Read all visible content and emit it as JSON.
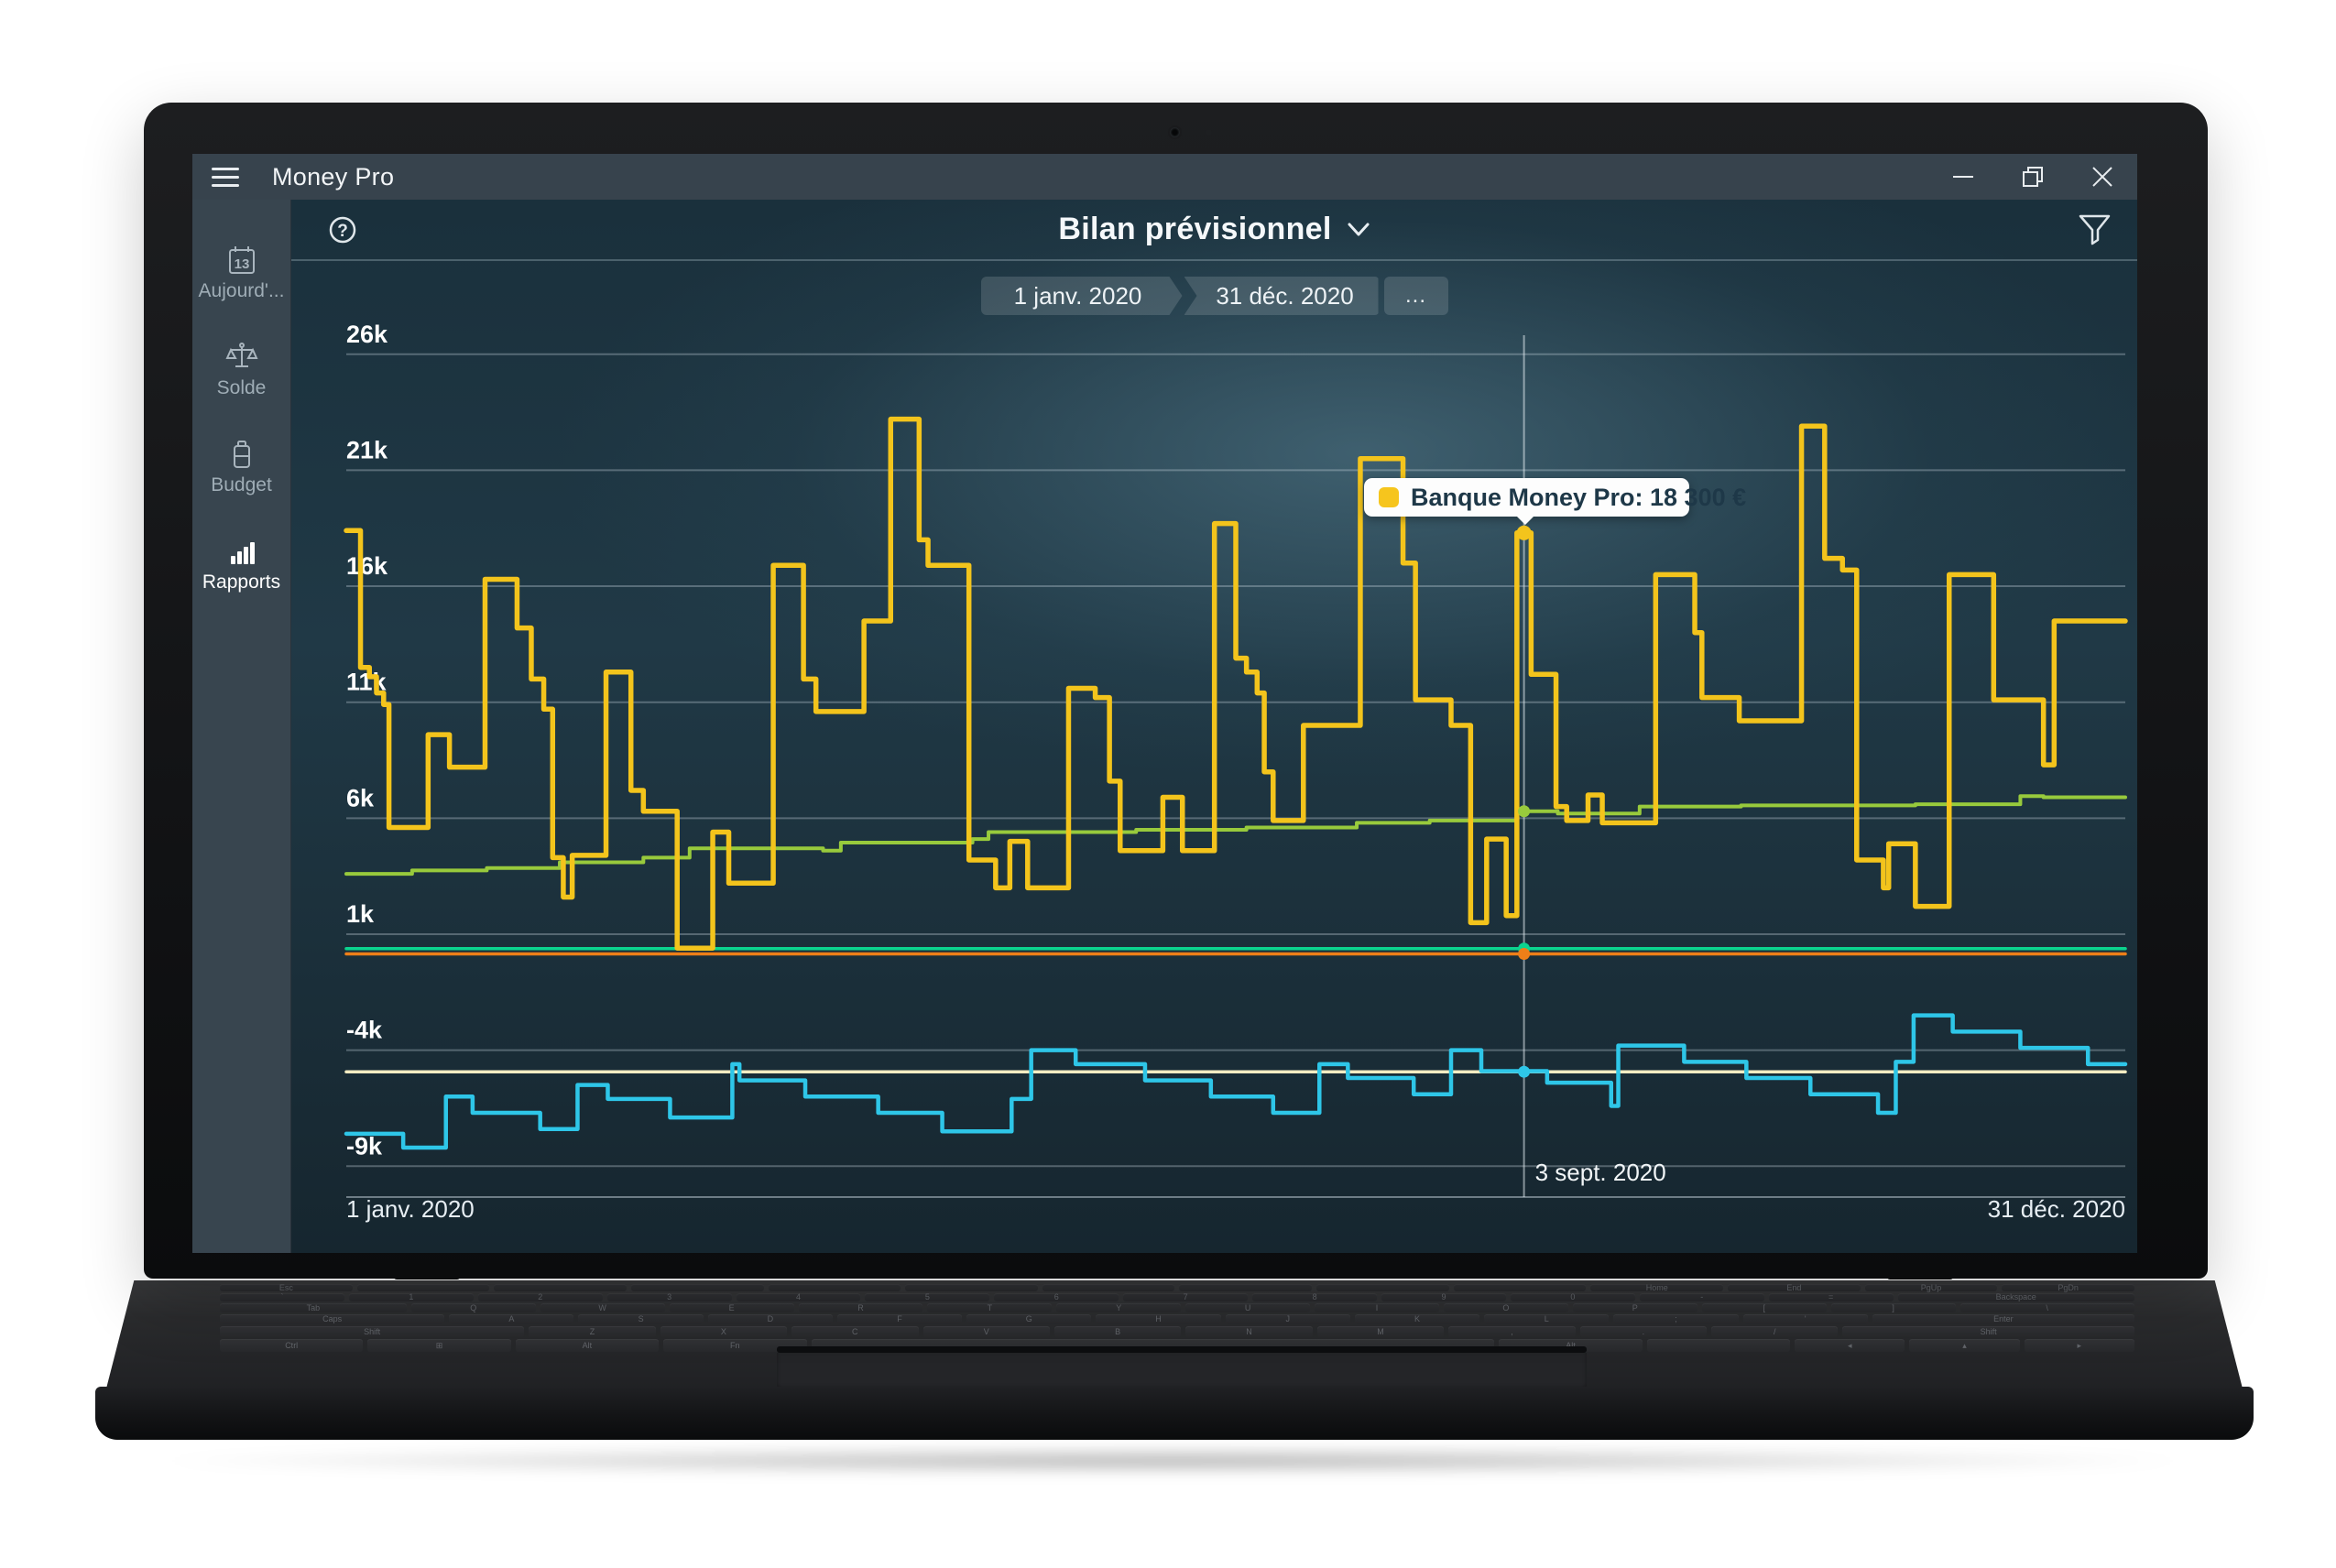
{
  "window": {
    "app_title": "Money Pro"
  },
  "sidebar": {
    "items": [
      {
        "id": "aujourdhui",
        "label": "Aujourd'...",
        "icon": "calendar-13-icon",
        "active": false
      },
      {
        "id": "solde",
        "label": "Solde",
        "icon": "scales-icon",
        "active": false
      },
      {
        "id": "budget",
        "label": "Budget",
        "icon": "battery-icon",
        "active": false
      },
      {
        "id": "rapports",
        "label": "Rapports",
        "icon": "bar-chart-icon",
        "active": true
      }
    ]
  },
  "header": {
    "title": "Bilan prévisionnel",
    "help_icon": "help-icon",
    "dropdown_icon": "chevron-down-icon",
    "filter_icon": "filter-icon"
  },
  "date_range": {
    "start": "1 janv. 2020",
    "end": "31 déc. 2020",
    "more": "..."
  },
  "tooltip": {
    "label": "Banque Money Pro: 18 300 €",
    "swatch_color": "#f6c51d"
  },
  "chart_data": {
    "type": "line",
    "title": "Bilan prévisionnel",
    "x_range": [
      "1 janv. 2020",
      "31 déc. 2020"
    ],
    "x_axis": {
      "start_label": "1 janv. 2020",
      "end_label": "31 déc. 2020"
    },
    "ylim": [
      -10.3,
      26.8
    ],
    "y_unit": "k€",
    "grid": true,
    "legend": "none",
    "y_ticks": [
      {
        "value": 26,
        "label": "26k"
      },
      {
        "value": 21,
        "label": "21k"
      },
      {
        "value": 16,
        "label": "16k"
      },
      {
        "value": 11,
        "label": "11k"
      },
      {
        "value": 6,
        "label": "6k"
      },
      {
        "value": 1,
        "label": "1k"
      },
      {
        "value": -4,
        "label": "-4k"
      },
      {
        "value": -9,
        "label": "-9k"
      }
    ],
    "series": [
      {
        "id": "limite",
        "name": "credit-limit-line",
        "color": "#f3ecc2",
        "width": 3.5,
        "points": [
          [
            0,
            -4.93
          ],
          [
            1,
            -4.93
          ]
        ]
      },
      {
        "id": "carte",
        "name": "carte-credit-line",
        "color": "#2ec6e8",
        "width": 4.5,
        "points": [
          [
            0,
            -7.6
          ],
          [
            0.032,
            -8.2
          ],
          [
            0.056,
            -6.0
          ],
          [
            0.071,
            -6.7
          ],
          [
            0.109,
            -7.4
          ],
          [
            0.13,
            -5.5
          ],
          [
            0.147,
            -6.1
          ],
          [
            0.182,
            -6.9
          ],
          [
            0.217,
            -4.6
          ],
          [
            0.221,
            -5.3
          ],
          [
            0.258,
            -6.0
          ],
          [
            0.299,
            -6.7
          ],
          [
            0.335,
            -7.5
          ],
          [
            0.374,
            -6.1
          ],
          [
            0.385,
            -4.0
          ],
          [
            0.41,
            -4.6
          ],
          [
            0.449,
            -5.3
          ],
          [
            0.486,
            -6.0
          ],
          [
            0.521,
            -6.7
          ],
          [
            0.547,
            -4.6
          ],
          [
            0.563,
            -5.2
          ],
          [
            0.6,
            -5.9
          ],
          [
            0.621,
            -4.0
          ],
          [
            0.638,
            -4.9
          ],
          [
            0.675,
            -5.4
          ],
          [
            0.711,
            -6.4
          ],
          [
            0.715,
            -3.8
          ],
          [
            0.752,
            -4.5
          ],
          [
            0.787,
            -5.2
          ],
          [
            0.823,
            -5.9
          ],
          [
            0.861,
            -6.7
          ],
          [
            0.871,
            -4.5
          ],
          [
            0.881,
            -2.5
          ],
          [
            0.903,
            -3.2
          ],
          [
            0.941,
            -3.9
          ],
          [
            0.979,
            -4.6
          ]
        ]
      },
      {
        "id": "flat-teal",
        "name": "especes-line",
        "color": "#0bd58f",
        "width": 3.5,
        "points": [
          [
            0,
            0.38
          ],
          [
            1,
            0.38
          ]
        ]
      },
      {
        "id": "flat-orange",
        "name": "compte-orange-line",
        "color": "#ee7f18",
        "width": 3.5,
        "points": [
          [
            0,
            0.15
          ],
          [
            1,
            0.15
          ]
        ]
      },
      {
        "id": "epargne",
        "name": "epargne-line",
        "color": "#98ca3c",
        "width": 4,
        "points": [
          [
            0,
            3.6
          ],
          [
            0.037,
            3.75
          ],
          [
            0.079,
            3.85
          ],
          [
            0.12,
            4.1
          ],
          [
            0.167,
            4.3
          ],
          [
            0.193,
            4.7
          ],
          [
            0.268,
            4.6
          ],
          [
            0.278,
            4.95
          ],
          [
            0.352,
            5.1
          ],
          [
            0.361,
            5.4
          ],
          [
            0.444,
            5.5
          ],
          [
            0.506,
            5.6
          ],
          [
            0.568,
            5.8
          ],
          [
            0.609,
            5.9
          ],
          [
            0.658,
            6.3
          ],
          [
            0.681,
            6.2
          ],
          [
            0.727,
            6.5
          ],
          [
            0.784,
            6.55
          ],
          [
            0.882,
            6.6
          ],
          [
            0.941,
            6.95
          ],
          [
            0.954,
            6.9
          ]
        ]
      },
      {
        "id": "banque",
        "name": "Banque Money Pro",
        "color": "#f3c41c",
        "width": 5.5,
        "points": [
          [
            0,
            18.4
          ],
          [
            0.008,
            12.5
          ],
          [
            0.013,
            12.1
          ],
          [
            0.017,
            11.4
          ],
          [
            0.021,
            10.9
          ],
          [
            0.024,
            5.6
          ],
          [
            0.046,
            9.6
          ],
          [
            0.058,
            8.2
          ],
          [
            0.078,
            16.3
          ],
          [
            0.096,
            14.2
          ],
          [
            0.104,
            12.0
          ],
          [
            0.111,
            10.7
          ],
          [
            0.116,
            4.3
          ],
          [
            0.122,
            2.6
          ],
          [
            0.127,
            4.4
          ],
          [
            0.146,
            12.3
          ],
          [
            0.16,
            7.2
          ],
          [
            0.167,
            6.3
          ],
          [
            0.186,
            0.4
          ],
          [
            0.206,
            5.4
          ],
          [
            0.215,
            3.2
          ],
          [
            0.24,
            16.9
          ],
          [
            0.257,
            12.0
          ],
          [
            0.264,
            10.6
          ],
          [
            0.291,
            14.5
          ],
          [
            0.306,
            23.2
          ],
          [
            0.322,
            18.0
          ],
          [
            0.327,
            16.9
          ],
          [
            0.35,
            4.2
          ],
          [
            0.365,
            3.0
          ],
          [
            0.373,
            5.0
          ],
          [
            0.383,
            3.0
          ],
          [
            0.406,
            11.6
          ],
          [
            0.421,
            11.2
          ],
          [
            0.429,
            7.6
          ],
          [
            0.435,
            4.6
          ],
          [
            0.459,
            6.9
          ],
          [
            0.47,
            4.6
          ],
          [
            0.488,
            18.7
          ],
          [
            0.5,
            12.9
          ],
          [
            0.506,
            12.3
          ],
          [
            0.512,
            11.4
          ],
          [
            0.516,
            8.0
          ],
          [
            0.521,
            5.9
          ],
          [
            0.538,
            10.0
          ],
          [
            0.57,
            21.5
          ],
          [
            0.594,
            17.0
          ],
          [
            0.601,
            11.1
          ],
          [
            0.621,
            10.0
          ],
          [
            0.632,
            1.5
          ],
          [
            0.641,
            5.1
          ],
          [
            0.652,
            1.8
          ],
          [
            0.658,
            18.3
          ],
          [
            0.666,
            12.2
          ],
          [
            0.68,
            6.5
          ],
          [
            0.686,
            5.9
          ],
          [
            0.698,
            7.0
          ],
          [
            0.706,
            5.8
          ],
          [
            0.736,
            16.5
          ],
          [
            0.758,
            14.0
          ],
          [
            0.762,
            11.2
          ],
          [
            0.783,
            10.2
          ],
          [
            0.818,
            22.9
          ],
          [
            0.831,
            17.2
          ],
          [
            0.841,
            16.7
          ],
          [
            0.849,
            4.2
          ],
          [
            0.864,
            3.0
          ],
          [
            0.867,
            4.9
          ],
          [
            0.882,
            2.2
          ],
          [
            0.901,
            16.5
          ],
          [
            0.926,
            11.1
          ],
          [
            0.954,
            8.3
          ],
          [
            0.96,
            14.5
          ]
        ]
      }
    ],
    "crosshair": {
      "x_frac": 0.662,
      "date_label": "3 sept. 2020",
      "points": [
        {
          "series": "banque",
          "value": 18.3
        },
        {
          "series": "epargne",
          "value": 6.3
        },
        {
          "series": "flat-teal",
          "value": 0.38
        },
        {
          "series": "flat-orange",
          "value": 0.15
        },
        {
          "series": "carte",
          "value": -4.93
        }
      ]
    },
    "tooltip": {
      "series": "banque",
      "label": "Banque Money Pro: 18 300 €",
      "value_eur": "18 300 €"
    }
  },
  "laptop": {
    "keyboard": {
      "rows": [
        {
          "h": 8,
          "keys": [
            [
              "Esc",
              1
            ],
            [
              "",
              1
            ],
            [
              "",
              1
            ],
            [
              "",
              1
            ],
            [
              "",
              1
            ],
            [
              "",
              1
            ],
            [
              "",
              1
            ],
            [
              "",
              1
            ],
            [
              "",
              1
            ],
            [
              "",
              1
            ],
            [
              "Home",
              1
            ],
            [
              "End",
              1
            ],
            [
              "PgUp",
              1
            ],
            [
              "PgDn",
              1
            ]
          ]
        },
        {
          "h": 9,
          "keys": [
            [
              "`",
              1
            ],
            [
              "1",
              1
            ],
            [
              "2",
              1
            ],
            [
              "3",
              1
            ],
            [
              "4",
              1
            ],
            [
              "5",
              1
            ],
            [
              "6",
              1
            ],
            [
              "7",
              1
            ],
            [
              "8",
              1
            ],
            [
              "9",
              1
            ],
            [
              "0",
              1
            ],
            [
              "-",
              1
            ],
            [
              "=",
              1
            ],
            [
              "Backspace",
              1.9
            ]
          ]
        },
        {
          "h": 10,
          "keys": [
            [
              "Tab",
              1.5
            ],
            [
              "Q",
              1
            ],
            [
              "W",
              1
            ],
            [
              "E",
              1
            ],
            [
              "R",
              1
            ],
            [
              "T",
              1
            ],
            [
              "Y",
              1
            ],
            [
              "U",
              1
            ],
            [
              "I",
              1
            ],
            [
              "O",
              1
            ],
            [
              "P",
              1
            ],
            [
              "[",
              1
            ],
            [
              "]",
              1
            ],
            [
              "\\",
              1.4
            ]
          ]
        },
        {
          "h": 11,
          "keys": [
            [
              "Caps",
              1.8
            ],
            [
              "A",
              1
            ],
            [
              "S",
              1
            ],
            [
              "D",
              1
            ],
            [
              "F",
              1
            ],
            [
              "G",
              1
            ],
            [
              "H",
              1
            ],
            [
              "J",
              1
            ],
            [
              "K",
              1
            ],
            [
              "L",
              1
            ],
            [
              ";",
              1
            ],
            [
              "'",
              1
            ],
            [
              "Enter",
              2.1
            ]
          ]
        },
        {
          "h": 12,
          "keys": [
            [
              "Shift",
              2.4
            ],
            [
              "Z",
              1
            ],
            [
              "X",
              1
            ],
            [
              "C",
              1
            ],
            [
              "V",
              1
            ],
            [
              "B",
              1
            ],
            [
              "N",
              1
            ],
            [
              "M",
              1
            ],
            [
              ",",
              1
            ],
            [
              ".",
              1
            ],
            [
              "/",
              1
            ],
            [
              "Shift",
              2.3
            ]
          ]
        },
        {
          "h": 14,
          "keys": [
            [
              "Ctrl",
              1.3
            ],
            [
              "⊞",
              1.3
            ],
            [
              "Alt",
              1.3
            ],
            [
              "Fn",
              1.3
            ],
            [
              "",
              6.2
            ],
            [
              "Alt",
              1.3
            ],
            [
              "",
              1.3
            ],
            [
              "◂",
              1
            ],
            [
              "▴",
              1
            ],
            [
              "▸",
              1
            ]
          ]
        }
      ]
    }
  }
}
